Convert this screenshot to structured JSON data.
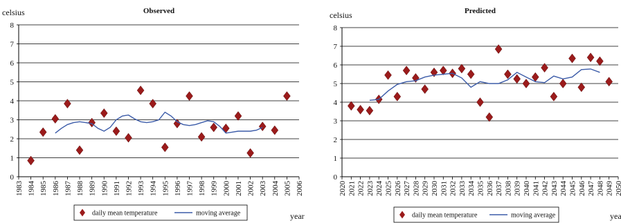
{
  "chart_data": [
    {
      "type": "scatter",
      "title": "Observed",
      "ylabel": "celsius",
      "xlabel": "year",
      "xlim": [
        1983,
        2006
      ],
      "ylim": [
        0,
        8
      ],
      "xticks": [
        "1983",
        "1984",
        "1985",
        "1986",
        "1987",
        "1988",
        "1989",
        "1990",
        "1991",
        "1992",
        "1993",
        "1994",
        "1995",
        "1996",
        "1997",
        "1998",
        "1999",
        "2000",
        "2001",
        "2002",
        "2003",
        "2004",
        "2005",
        "2006"
      ],
      "yticks": [
        "0",
        "1",
        "2",
        "3",
        "4",
        "5",
        "6",
        "7",
        "8"
      ],
      "grid": "horizontal",
      "legend": "bottom",
      "series": [
        {
          "name": "daily mean temperature",
          "marker": "diamond",
          "color": "#9b1b1b",
          "x": [
            1984,
            1985,
            1986,
            1987,
            1988,
            1989,
            1990,
            1991,
            1992,
            1993,
            1994,
            1995,
            1996,
            1997,
            1998,
            1999,
            2000,
            2001,
            2002,
            2003,
            2004,
            2005
          ],
          "y": [
            0.85,
            2.35,
            3.05,
            3.85,
            1.4,
            2.85,
            3.35,
            2.4,
            2.05,
            4.55,
            3.85,
            1.55,
            2.8,
            4.25,
            2.1,
            2.6,
            2.55,
            3.2,
            1.25,
            2.65,
            2.45,
            4.25
          ]
        },
        {
          "name": "moving average",
          "line": true,
          "color": "#3b5ba8",
          "x": [
            1986,
            1986.5,
            1987,
            1987.5,
            1988,
            1988.5,
            1989,
            1989.5,
            1990,
            1990.5,
            1991,
            1991.5,
            1992,
            1992.5,
            1993,
            1993.5,
            1994,
            1994.5,
            1995,
            1995.5,
            1996,
            1996.5,
            1997,
            1997.5,
            1998,
            1998.5,
            1999,
            1999.5,
            2000,
            2000.5,
            2001,
            2001.5,
            2002,
            2002.5,
            2003
          ],
          "y": [
            2.3,
            2.55,
            2.75,
            2.85,
            2.9,
            2.85,
            2.8,
            2.55,
            2.4,
            2.6,
            3.0,
            3.2,
            3.25,
            3.05,
            2.9,
            2.85,
            2.9,
            3.0,
            3.4,
            3.2,
            2.9,
            2.75,
            2.7,
            2.75,
            2.85,
            2.95,
            2.9,
            2.65,
            2.3,
            2.35,
            2.4,
            2.4,
            2.4,
            2.45,
            2.6
          ]
        }
      ]
    },
    {
      "type": "scatter",
      "title": "Predicted",
      "ylabel": "celsius",
      "xlabel": "yea",
      "xlim": [
        2020,
        2050
      ],
      "ylim": [
        0,
        8
      ],
      "xticks": [
        "2020",
        "2021",
        "2022",
        "2023",
        "2024",
        "2025",
        "2026",
        "2027",
        "2028",
        "2029",
        "2030",
        "2031",
        "2032",
        "2033",
        "2034",
        "2035",
        "2036",
        "2037",
        "2038",
        "2039",
        "2040",
        "2041",
        "2042",
        "2043",
        "2044",
        "2045",
        "2046",
        "2047",
        "2048",
        "2049",
        "2050"
      ],
      "yticks": [
        "0",
        "1",
        "2",
        "3",
        "4",
        "5",
        "6",
        "7",
        "8"
      ],
      "grid": "horizontal",
      "legend": "bottom",
      "series": [
        {
          "name": "daily mean temperature",
          "marker": "diamond",
          "color": "#9b1b1b",
          "x": [
            2021,
            2022,
            2023,
            2024,
            2025,
            2026,
            2027,
            2028,
            2029,
            2030,
            2031,
            2032,
            2033,
            2034,
            2035,
            2036,
            2037,
            2038,
            2039,
            2040,
            2041,
            2042,
            2043,
            2044,
            2045,
            2046,
            2047,
            2048,
            2049
          ],
          "y": [
            3.8,
            3.6,
            3.55,
            4.15,
            5.45,
            4.3,
            5.7,
            5.3,
            4.7,
            5.6,
            5.7,
            5.55,
            5.8,
            5.5,
            4.0,
            3.2,
            6.85,
            5.5,
            5.25,
            5.0,
            5.35,
            5.85,
            4.3,
            5.0,
            6.35,
            4.8,
            6.4,
            6.2,
            5.1
          ]
        },
        {
          "name": "moving average",
          "line": true,
          "color": "#3b5ba8",
          "x": [
            2023,
            2024,
            2025,
            2026,
            2027,
            2028,
            2029,
            2030,
            2031,
            2032,
            2033,
            2034,
            2035,
            2036,
            2037,
            2038,
            2039,
            2040,
            2041,
            2042,
            2043,
            2044,
            2045,
            2046,
            2047,
            2048
          ],
          "y": [
            4.1,
            4.15,
            4.6,
            4.95,
            5.1,
            5.15,
            5.35,
            5.45,
            5.5,
            5.55,
            5.3,
            4.8,
            5.1,
            5.0,
            5.0,
            5.2,
            5.6,
            5.35,
            5.1,
            5.05,
            5.4,
            5.25,
            5.35,
            5.75,
            5.78,
            5.6
          ]
        }
      ]
    }
  ]
}
